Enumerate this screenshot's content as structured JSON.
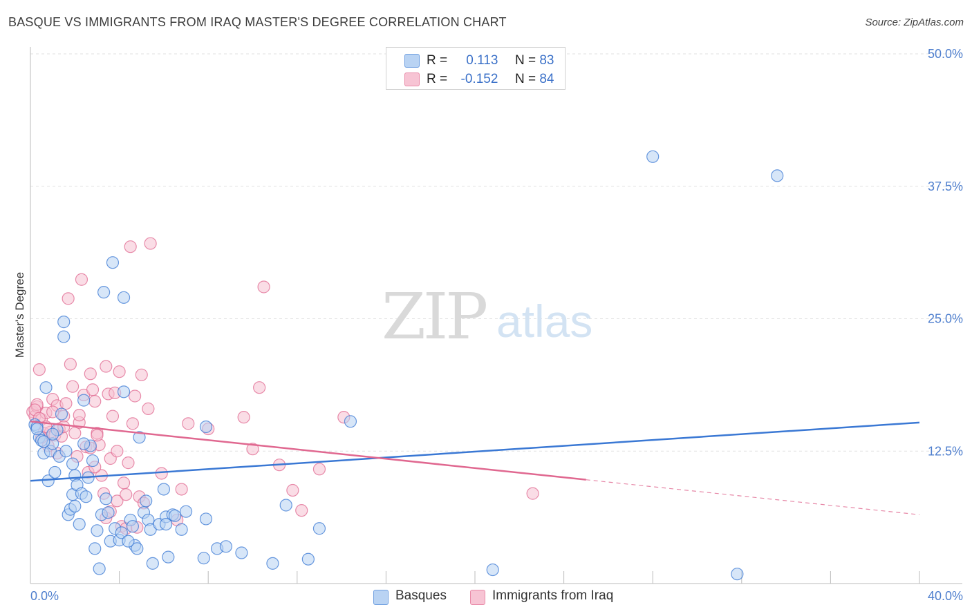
{
  "header": {
    "title": "BASQUE VS IMMIGRANTS FROM IRAQ MASTER'S DEGREE CORRELATION CHART",
    "source": "Source: ZipAtlas.com"
  },
  "legend": {
    "series": [
      {
        "name": "Basques",
        "r_label": "R =",
        "r_value": "0.113",
        "n_label": "N =",
        "n_value": "83",
        "color": "#6f9fe0",
        "fill": "#b9d3f3"
      },
      {
        "name": "Immigrants from Iraq",
        "r_label": "R =",
        "r_value": "-0.152",
        "n_label": "N =",
        "n_value": "84",
        "color": "#e98aa8",
        "fill": "#f7c4d4"
      }
    ]
  },
  "watermark": {
    "zip": "ZIP",
    "atlas": "atlas"
  },
  "chart_data": {
    "type": "scatter",
    "title": "BASQUE VS IMMIGRANTS FROM IRAQ MASTER'S DEGREE CORRELATION CHART",
    "xlabel": "",
    "ylabel": "Master's Degree",
    "xlim": [
      0,
      40
    ],
    "ylim": [
      0,
      50
    ],
    "x_tick_labels": [
      "0.0%",
      "40.0%"
    ],
    "y_ticks": [
      12.5,
      25.0,
      37.5,
      50.0
    ],
    "y_tick_labels": [
      "12.5%",
      "25.0%",
      "37.5%",
      "50.0%"
    ],
    "grid": true,
    "series": [
      {
        "name": "Basques",
        "color": "#3a78d4",
        "fill": "#b7d1f2",
        "trend": {
          "x0": 0,
          "y0": 9.7,
          "x1": 40,
          "y1": 15.2,
          "dashed_from": null
        },
        "points": [
          [
            0.2,
            15.0
          ],
          [
            0.3,
            14.8
          ],
          [
            0.4,
            13.8
          ],
          [
            0.5,
            13.5
          ],
          [
            0.6,
            12.3
          ],
          [
            0.7,
            18.5
          ],
          [
            0.8,
            9.7
          ],
          [
            0.9,
            12.5
          ],
          [
            1.0,
            13.2
          ],
          [
            1.1,
            10.5
          ],
          [
            1.2,
            14.5
          ],
          [
            1.3,
            12.0
          ],
          [
            1.4,
            16.0
          ],
          [
            1.5,
            24.7
          ],
          [
            1.5,
            23.3
          ],
          [
            1.6,
            12.5
          ],
          [
            1.7,
            6.5
          ],
          [
            1.8,
            7.0
          ],
          [
            1.9,
            11.3
          ],
          [
            1.9,
            8.4
          ],
          [
            2.0,
            10.2
          ],
          [
            2.1,
            9.3
          ],
          [
            2.2,
            5.6
          ],
          [
            2.3,
            8.5
          ],
          [
            2.4,
            17.3
          ],
          [
            2.5,
            8.2
          ],
          [
            2.6,
            10.0
          ],
          [
            2.7,
            13.0
          ],
          [
            2.8,
            11.6
          ],
          [
            2.9,
            3.3
          ],
          [
            3.0,
            5.0
          ],
          [
            3.1,
            1.4
          ],
          [
            3.2,
            6.5
          ],
          [
            3.3,
            27.5
          ],
          [
            3.4,
            8.0
          ],
          [
            3.6,
            4.0
          ],
          [
            3.7,
            30.3
          ],
          [
            3.8,
            5.2
          ],
          [
            4.0,
            4.1
          ],
          [
            4.1,
            4.8
          ],
          [
            4.2,
            27.0
          ],
          [
            4.2,
            18.1
          ],
          [
            4.5,
            6.0
          ],
          [
            4.6,
            5.4
          ],
          [
            4.7,
            3.6
          ],
          [
            4.8,
            3.3
          ],
          [
            4.9,
            13.8
          ],
          [
            5.1,
            6.7
          ],
          [
            5.2,
            7.8
          ],
          [
            5.3,
            6.0
          ],
          [
            5.4,
            5.1
          ],
          [
            5.5,
            1.9
          ],
          [
            5.8,
            5.6
          ],
          [
            6.0,
            8.9
          ],
          [
            6.1,
            6.3
          ],
          [
            6.1,
            5.6
          ],
          [
            6.2,
            2.5
          ],
          [
            6.4,
            6.5
          ],
          [
            6.5,
            6.4
          ],
          [
            6.8,
            5.1
          ],
          [
            7.0,
            6.8
          ],
          [
            7.8,
            2.4
          ],
          [
            7.9,
            6.1
          ],
          [
            7.9,
            14.8
          ],
          [
            8.4,
            3.3
          ],
          [
            8.8,
            3.5
          ],
          [
            9.5,
            2.9
          ],
          [
            10.9,
            1.9
          ],
          [
            11.5,
            7.4
          ],
          [
            12.5,
            2.3
          ],
          [
            13.0,
            5.2
          ],
          [
            14.4,
            15.3
          ],
          [
            20.8,
            1.3
          ],
          [
            28.0,
            40.3
          ],
          [
            31.8,
            0.9
          ],
          [
            33.6,
            38.5
          ],
          [
            0.3,
            14.6
          ],
          [
            0.6,
            13.4
          ],
          [
            1.0,
            14.1
          ],
          [
            2.0,
            7.3
          ],
          [
            2.4,
            13.2
          ],
          [
            3.5,
            6.7
          ],
          [
            4.4,
            4.0
          ]
        ]
      },
      {
        "name": "Immigrants from Iraq",
        "color": "#e06890",
        "fill": "#f6c1d2",
        "trend": {
          "x0": 0,
          "y0": 15.3,
          "x1": 40,
          "y1": 6.5,
          "dashed_from": 25.0
        },
        "points": [
          [
            0.1,
            16.2
          ],
          [
            0.2,
            15.8
          ],
          [
            0.3,
            16.7
          ],
          [
            0.3,
            16.9
          ],
          [
            0.4,
            20.2
          ],
          [
            0.5,
            15.5
          ],
          [
            0.6,
            14.2
          ],
          [
            0.7,
            16.1
          ],
          [
            0.8,
            13.0
          ],
          [
            0.9,
            14.3
          ],
          [
            1.0,
            17.4
          ],
          [
            1.1,
            14.0
          ],
          [
            1.2,
            16.8
          ],
          [
            1.3,
            14.6
          ],
          [
            1.4,
            13.9
          ],
          [
            1.5,
            15.8
          ],
          [
            1.6,
            17.0
          ],
          [
            1.7,
            26.9
          ],
          [
            1.8,
            20.7
          ],
          [
            1.9,
            18.6
          ],
          [
            2.0,
            14.2
          ],
          [
            2.1,
            12.0
          ],
          [
            2.2,
            15.2
          ],
          [
            2.3,
            28.7
          ],
          [
            2.4,
            17.8
          ],
          [
            2.5,
            12.9
          ],
          [
            2.6,
            10.5
          ],
          [
            2.7,
            19.8
          ],
          [
            2.8,
            18.3
          ],
          [
            2.9,
            17.2
          ],
          [
            3.0,
            14.2
          ],
          [
            3.1,
            13.1
          ],
          [
            3.2,
            10.2
          ],
          [
            3.3,
            8.5
          ],
          [
            3.4,
            20.5
          ],
          [
            3.5,
            17.9
          ],
          [
            3.6,
            11.8
          ],
          [
            3.7,
            15.8
          ],
          [
            3.8,
            18.0
          ],
          [
            3.9,
            7.8
          ],
          [
            4.0,
            20.0
          ],
          [
            4.1,
            5.4
          ],
          [
            4.2,
            9.5
          ],
          [
            4.3,
            5.2
          ],
          [
            4.4,
            11.4
          ],
          [
            4.5,
            31.8
          ],
          [
            4.6,
            15.1
          ],
          [
            4.7,
            17.7
          ],
          [
            4.8,
            5.3
          ],
          [
            4.9,
            8.2
          ],
          [
            5.0,
            19.7
          ],
          [
            5.1,
            7.6
          ],
          [
            5.3,
            16.5
          ],
          [
            5.4,
            32.1
          ],
          [
            5.9,
            10.4
          ],
          [
            6.6,
            6.0
          ],
          [
            6.8,
            8.9
          ],
          [
            7.1,
            15.1
          ],
          [
            8.0,
            14.6
          ],
          [
            9.6,
            15.7
          ],
          [
            10.0,
            12.7
          ],
          [
            10.3,
            18.5
          ],
          [
            10.5,
            28.0
          ],
          [
            11.2,
            11.2
          ],
          [
            11.8,
            8.8
          ],
          [
            12.2,
            6.9
          ],
          [
            13.0,
            10.8
          ],
          [
            14.1,
            15.7
          ],
          [
            22.6,
            8.5
          ],
          [
            0.2,
            16.4
          ],
          [
            0.4,
            15.6
          ],
          [
            0.7,
            14.8
          ],
          [
            1.0,
            16.2
          ],
          [
            1.5,
            14.8
          ],
          [
            2.2,
            15.9
          ],
          [
            2.7,
            12.8
          ],
          [
            3.0,
            14.0
          ],
          [
            3.4,
            6.2
          ],
          [
            3.9,
            12.5
          ],
          [
            4.3,
            8.4
          ],
          [
            0.5,
            13.8
          ],
          [
            1.2,
            12.3
          ],
          [
            2.9,
            11.0
          ],
          [
            3.6,
            6.8
          ]
        ]
      }
    ]
  }
}
